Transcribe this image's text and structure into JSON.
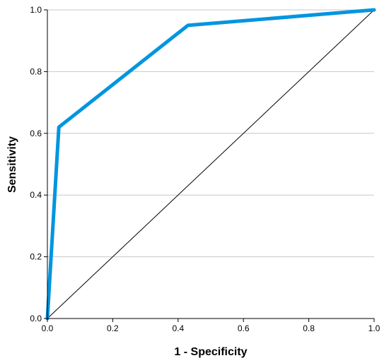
{
  "chart_data": {
    "type": "line",
    "title": "",
    "xlabel": "1 - Specificity",
    "ylabel": "Sensitivity",
    "xlim": [
      0,
      1
    ],
    "ylim": [
      0,
      1
    ],
    "grid": "horizontal",
    "xticks": [
      "0.0",
      "0.2",
      "0.4",
      "0.6",
      "0.8",
      "1.0"
    ],
    "yticks": [
      "0.0",
      "0.2",
      "0.4",
      "0.6",
      "0.8",
      "1.0"
    ],
    "series": [
      {
        "color": "#0095df",
        "x": [
          0.0,
          0.035,
          0.43,
          1.0
        ],
        "y": [
          0.0,
          0.62,
          0.95,
          1.0
        ]
      },
      {
        "role": "reference",
        "color": "#000000",
        "x": [
          0.0,
          1.0
        ],
        "y": [
          0.0,
          1.0
        ]
      }
    ],
    "colors": {
      "grid": "#c8c8c8",
      "axis": "#000000"
    }
  }
}
